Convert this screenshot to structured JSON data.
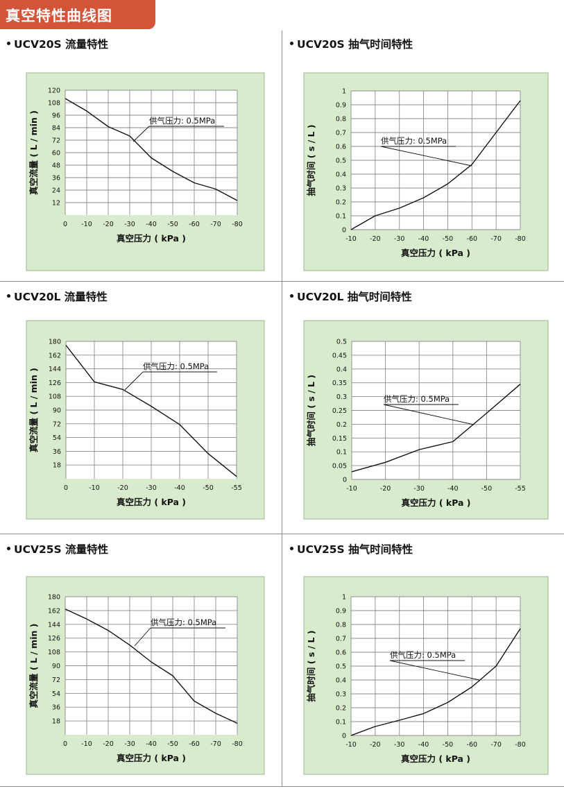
{
  "banner": {
    "title": "真空特性曲线图"
  },
  "colors": {
    "banner_bg": "#d4543a",
    "chart_bg": "#d9ebcd",
    "chart_border": "#9bb58a",
    "grid": "#8a8a8a",
    "line": "#111111"
  },
  "charts": [
    {
      "title": "UCV20S 流量特性",
      "chart_data": {
        "type": "line",
        "xlabel": "真空压力 ( kPa )",
        "ylabel": "真空流量 ( L / min )",
        "x_ticks": [
          "0",
          "-10",
          "-20",
          "-30",
          "-40",
          "-50",
          "-60",
          "-70",
          "-80"
        ],
        "y_ticks": [
          "12",
          "24",
          "36",
          "48",
          "60",
          "72",
          "84",
          "96",
          "108",
          "120"
        ],
        "xlim": [
          0,
          -80
        ],
        "ylim": [
          0,
          120
        ],
        "annotation": "供气压力: 0.5MPa",
        "series": [
          {
            "x": [
              0,
              -10,
              -20,
              -30,
              -40,
              -50,
              -60,
              -70,
              -80
            ],
            "y": [
              112,
              100,
              85,
              76,
              55,
              42,
              31,
              25,
              14
            ]
          }
        ]
      }
    },
    {
      "title": "UCV20S 抽气时间特性",
      "chart_data": {
        "type": "line",
        "xlabel": "真空压力 ( kPa )",
        "ylabel": "抽气时间 ( s / L )",
        "x_ticks": [
          "-10",
          "-20",
          "-30",
          "-40",
          "-50",
          "-60",
          "-70",
          "-80"
        ],
        "y_ticks": [
          "0",
          "0.1",
          "0.2",
          "0.3",
          "0.4",
          "0.5",
          "0.6",
          "0.7",
          "0.8",
          "0.9",
          "1"
        ],
        "xlim": [
          -10,
          -80
        ],
        "ylim": [
          0,
          1
        ],
        "annotation": "供气压力: 0.5MPa",
        "series": [
          {
            "x": [
              -10,
              -20,
              -30,
              -40,
              -50,
              -60,
              -70,
              -80
            ],
            "y": [
              0,
              0.1,
              0.155,
              0.23,
              0.33,
              0.47,
              0.7,
              0.93
            ]
          }
        ]
      }
    },
    {
      "title": "UCV20L 流量特性",
      "chart_data": {
        "type": "line",
        "xlabel": "真空压力 ( kPa )",
        "ylabel": "真空流量 ( L / min )",
        "x_ticks": [
          "0",
          "-10",
          "-20",
          "-30",
          "-40",
          "-50",
          "-55"
        ],
        "y_ticks": [
          "18",
          "36",
          "54",
          "72",
          "90",
          "108",
          "126",
          "144",
          "162",
          "180"
        ],
        "xlim": [
          0,
          -60
        ],
        "ylim": [
          0,
          180
        ],
        "annotation": "供气压力: 0.5MPa",
        "series": [
          {
            "x": [
              0,
              -10,
              -20,
              -30,
              -40,
              -50,
              -60
            ],
            "y": [
              175,
              127,
              117,
              95,
              71,
              33,
              3
            ]
          }
        ]
      }
    },
    {
      "title": "UCV20L 抽气时间特性",
      "chart_data": {
        "type": "line",
        "xlabel": "真空压力 ( kPa )",
        "ylabel": "抽气时间 ( s / L )",
        "x_ticks": [
          "-10",
          "-20",
          "-30",
          "-40",
          "-50",
          "-55"
        ],
        "y_ticks": [
          "0",
          "0.05",
          "0.1",
          "0.15",
          "0.2",
          "0.25",
          "0.3",
          "0.35",
          "0.4",
          "0.45",
          "0.5"
        ],
        "xlim": [
          -10,
          -60
        ],
        "ylim": [
          0,
          0.5
        ],
        "annotation": "供气压力: 0.5MPa",
        "series": [
          {
            "x": [
              -10,
              -20,
              -30,
              -40,
              -50,
              -60
            ],
            "y": [
              0.028,
              0.062,
              0.108,
              0.137,
              0.24,
              0.345
            ]
          }
        ]
      }
    },
    {
      "title": "UCV25S 流量特性",
      "chart_data": {
        "type": "line",
        "xlabel": "真空压力 ( kPa )",
        "ylabel": "真空流量 ( L / min )",
        "x_ticks": [
          "0",
          "-10",
          "-20",
          "-30",
          "-40",
          "-50",
          "-60",
          "-70",
          "-80"
        ],
        "y_ticks": [
          "18",
          "36",
          "54",
          "72",
          "90",
          "108",
          "126",
          "144",
          "162",
          "180"
        ],
        "xlim": [
          0,
          -80
        ],
        "ylim": [
          0,
          180
        ],
        "annotation": "供气压力: 0.5MPa",
        "series": [
          {
            "x": [
              0,
              -10,
              -20,
              -30,
              -40,
              -50,
              -60,
              -70,
              -80
            ],
            "y": [
              164,
              151,
              136,
              117,
              95,
              77,
              44,
              28,
              15
            ]
          }
        ]
      }
    },
    {
      "title": "UCV25S 抽气时间特性",
      "chart_data": {
        "type": "line",
        "xlabel": "真空压力 ( kPa )",
        "ylabel": "抽气时间 ( s / L )",
        "x_ticks": [
          "-10",
          "-20",
          "-30",
          "-40",
          "-50",
          "-60",
          "-70",
          "-80"
        ],
        "y_ticks": [
          "0",
          "0.1",
          "0.2",
          "0.3",
          "0.4",
          "0.5",
          "0.6",
          "0.7",
          "0.8",
          "0.9",
          "1"
        ],
        "xlim": [
          -10,
          -80
        ],
        "ylim": [
          0,
          1
        ],
        "annotation": "供气压力: 0.5MPa",
        "series": [
          {
            "x": [
              -10,
              -20,
              -30,
              -40,
              -50,
              -60,
              -70,
              -80
            ],
            "y": [
              0,
              0.065,
              0.11,
              0.158,
              0.238,
              0.35,
              0.5,
              0.77
            ]
          }
        ]
      }
    }
  ]
}
